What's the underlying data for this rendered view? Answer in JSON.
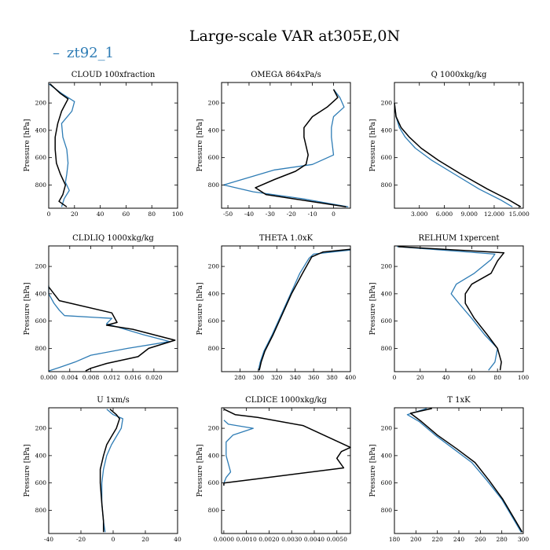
{
  "figure": {
    "title": "Large-scale VAR at305E,0N",
    "legend_label": "zt92_1",
    "colors": {
      "series_1": "#2e7cb5",
      "series_2": "#000000"
    }
  },
  "chart_data": [
    {
      "type": "line",
      "title": "CLOUD  100xfraction",
      "xlabel": "",
      "ylabel": "Pressure [hPa]",
      "xlim": [
        0,
        100
      ],
      "ylim": [
        970,
        50
      ],
      "xticks": [
        0,
        20,
        40,
        60,
        80,
        100
      ],
      "xtick_labels": [
        "0",
        "20",
        "40",
        "60",
        "80",
        "100"
      ],
      "yticks": [
        200,
        400,
        600,
        800
      ],
      "ytick_labels": [
        "200",
        "400",
        "600",
        "800"
      ],
      "series": [
        {
          "name": "zt92_1",
          "color": "#2e7cb5",
          "x": [
            0,
            10,
            20,
            18,
            10,
            11,
            14,
            15,
            14,
            13,
            16,
            12,
            10
          ],
          "y": [
            60,
            130,
            190,
            260,
            350,
            450,
            540,
            640,
            720,
            780,
            840,
            900,
            960
          ]
        },
        {
          "color": "#000000",
          "x": [
            1,
            9,
            15,
            10,
            7,
            5,
            5,
            6,
            9,
            13,
            11,
            8,
            14
          ],
          "y": [
            60,
            130,
            170,
            260,
            350,
            450,
            540,
            640,
            720,
            800,
            870,
            920,
            960
          ]
        }
      ]
    },
    {
      "type": "line",
      "title": "OMEGA  864xPa/s",
      "xlabel": "",
      "ylabel": "Pressure [hPa]",
      "xlim": [
        -53,
        8
      ],
      "ylim": [
        970,
        50
      ],
      "xticks": [
        -50,
        -40,
        -30,
        -20,
        -10,
        0
      ],
      "xtick_labels": [
        "-50",
        "-40",
        "-30",
        "-20",
        "-10",
        "0"
      ],
      "series": [
        {
          "name": "zt92_1",
          "color": "#2e7cb5",
          "x": [
            0,
            3,
            5,
            0,
            -1,
            -1,
            0,
            -10,
            -28,
            -52,
            -38,
            -15,
            7
          ],
          "y": [
            100,
            160,
            230,
            300,
            380,
            450,
            580,
            650,
            690,
            800,
            850,
            900,
            960
          ]
        },
        {
          "color": "#000000",
          "x": [
            0,
            2,
            -3,
            -10,
            -14,
            -14,
            -12,
            -13,
            -18,
            -28,
            -37,
            -32,
            6
          ],
          "y": [
            100,
            160,
            230,
            300,
            380,
            450,
            580,
            650,
            700,
            760,
            820,
            870,
            960
          ]
        }
      ]
    },
    {
      "type": "line",
      "title": "Q  1000xkg/kg",
      "xlabel": "",
      "ylabel": "Pressure [hPa]",
      "xlim": [
        0,
        15.5
      ],
      "ylim": [
        970,
        50
      ],
      "xticks": [
        3,
        6,
        9,
        12,
        15
      ],
      "xtick_labels": [
        "3.000",
        "6.000",
        "9.000",
        "12.000",
        "15.000"
      ],
      "series": [
        {
          "name": "zt92_1",
          "color": "#2e7cb5",
          "x": [
            0,
            0.2,
            0.6,
            1.3,
            2.5,
            4.5,
            7.2,
            10.2,
            12.8,
            14.2
          ],
          "y": [
            200,
            300,
            380,
            450,
            530,
            620,
            720,
            830,
            910,
            960
          ]
        },
        {
          "color": "#000000",
          "x": [
            0,
            0.2,
            0.8,
            1.8,
            3.2,
            5.3,
            8.0,
            11.2,
            13.8,
            15.2
          ],
          "y": [
            200,
            300,
            380,
            450,
            530,
            620,
            720,
            830,
            910,
            960
          ]
        }
      ]
    },
    {
      "type": "line",
      "title": "CLDLIQ  1000xkg/kg",
      "xlabel": "",
      "ylabel": "Pressure [hPa]",
      "xlim": [
        0,
        0.0245
      ],
      "ylim": [
        970,
        50
      ],
      "xticks": [
        0,
        0.004,
        0.008,
        0.012,
        0.016,
        0.02
      ],
      "xtick_labels": [
        "0.000",
        "0.004",
        "0.008",
        "0.012",
        "0.016",
        "0.020"
      ],
      "series": [
        {
          "name": "zt92_1",
          "color": "#2e7cb5",
          "x": [
            0,
            0,
            0.001,
            0.002,
            0.003,
            0.012,
            0.011,
            0.018,
            0.023,
            0.015,
            0.008,
            0.005,
            0.002,
            0
          ],
          "y": [
            340,
            400,
            470,
            520,
            560,
            580,
            620,
            700,
            750,
            800,
            850,
            900,
            940,
            965
          ]
        },
        {
          "color": "#000000",
          "x": [
            0,
            0.001,
            0.002,
            0.012,
            0.013,
            0.011,
            0.016,
            0.024,
            0.019,
            0.017,
            0.011,
            0.008,
            0.007
          ],
          "y": [
            350,
            400,
            450,
            540,
            610,
            630,
            660,
            740,
            800,
            860,
            910,
            945,
            965
          ]
        }
      ]
    },
    {
      "type": "line",
      "title": "THETA  1.0xK",
      "xlabel": "",
      "ylabel": "Pressure [hPa]",
      "xlim": [
        260,
        400
      ],
      "ylim": [
        970,
        50
      ],
      "xticks": [
        280,
        300,
        320,
        340,
        360,
        380,
        400
      ],
      "xtick_labels": [
        "280",
        "300",
        "320",
        "340",
        "360",
        "380",
        "400"
      ],
      "series": [
        {
          "name": "zt92_1",
          "color": "#2e7cb5",
          "x": [
            400,
            360,
            355,
            345,
            335,
            325,
            315,
            306,
            302,
            300
          ],
          "y": [
            80,
            110,
            140,
            250,
            400,
            550,
            700,
            820,
            900,
            960
          ]
        },
        {
          "color": "#000000",
          "x": [
            400,
            370,
            358,
            348,
            336,
            326,
            316,
            307,
            303,
            301
          ],
          "y": [
            75,
            95,
            130,
            250,
            400,
            550,
            700,
            820,
            900,
            960
          ]
        }
      ]
    },
    {
      "type": "line",
      "title": "RELHUM  1xpercent",
      "xlabel": "",
      "ylabel": "Pressure [hPa]",
      "xlim": [
        0,
        100
      ],
      "ylim": [
        970,
        50
      ],
      "xticks": [
        0,
        20,
        40,
        60,
        80,
        100
      ],
      "xtick_labels": [
        "0",
        "20",
        "40",
        "60",
        "80",
        "100"
      ],
      "series": [
        {
          "name": "zt92_1",
          "color": "#2e7cb5",
          "x": [
            2,
            78,
            75,
            62,
            48,
            44,
            50,
            60,
            70,
            80,
            78,
            73
          ],
          "y": [
            55,
            110,
            150,
            250,
            330,
            400,
            470,
            580,
            700,
            800,
            900,
            960
          ]
        },
        {
          "color": "#000000",
          "x": [
            3,
            85,
            80,
            75,
            60,
            55,
            55,
            62,
            72,
            80,
            83,
            82
          ],
          "y": [
            55,
            100,
            160,
            250,
            330,
            400,
            470,
            580,
            700,
            800,
            900,
            960
          ]
        }
      ]
    },
    {
      "type": "line",
      "title": "U  1xm/s",
      "xlabel": "",
      "ylabel": "Pressure [hPa]",
      "xlim": [
        -40,
        40
      ],
      "ylim": [
        970,
        50
      ],
      "xticks": [
        -40,
        -20,
        0,
        20,
        40
      ],
      "xtick_labels": [
        "-40",
        "-20",
        "0",
        "20",
        "40"
      ],
      "series": [
        {
          "name": "zt92_1",
          "color": "#2e7cb5",
          "x": [
            -4,
            0,
            6,
            5,
            2,
            -1,
            -4,
            -6,
            -7,
            -7,
            -6,
            -5
          ],
          "y": [
            60,
            100,
            130,
            200,
            260,
            320,
            400,
            500,
            600,
            750,
            880,
            960
          ]
        },
        {
          "color": "#000000",
          "x": [
            -2,
            2,
            4,
            2,
            -1,
            -4,
            -6,
            -8,
            -8,
            -7,
            -6,
            -6
          ],
          "y": [
            60,
            100,
            130,
            200,
            260,
            320,
            400,
            500,
            600,
            750,
            880,
            960
          ]
        }
      ]
    },
    {
      "type": "line",
      "title": "CLDICE  1000xkg/kg",
      "xlabel": "",
      "ylabel": "Pressure [hPa]",
      "xlim": [
        -0.0001,
        0.0056
      ],
      "ylim": [
        970,
        50
      ],
      "xticks": [
        0,
        0.001,
        0.002,
        0.003,
        0.004,
        0.005
      ],
      "xtick_labels": [
        "0.0000",
        "0.0010",
        "0.0020",
        "0.0030",
        "0.0040",
        "0.0050"
      ],
      "series": [
        {
          "name": "zt92_1",
          "color": "#2e7cb5",
          "x": [
            0,
            0.0002,
            0.0013,
            0.0004,
            0.0001,
            0.0001,
            0.0003,
            0.0001,
            0
          ],
          "y": [
            140,
            170,
            200,
            250,
            300,
            400,
            520,
            560,
            600
          ]
        },
        {
          "color": "#000000",
          "x": [
            0,
            0.0005,
            0.0015,
            0.0035,
            0.0056,
            0.0052,
            0.005,
            0.0053,
            0.0015,
            0,
            0
          ],
          "y": [
            60,
            100,
            120,
            180,
            340,
            370,
            420,
            490,
            570,
            600,
            620
          ]
        }
      ]
    },
    {
      "type": "line",
      "title": "T  1xK",
      "xlabel": "",
      "ylabel": "Pressure [hPa]",
      "xlim": [
        180,
        300
      ],
      "ylim": [
        970,
        50
      ],
      "xticks": [
        180,
        200,
        220,
        240,
        260,
        280,
        300
      ],
      "xtick_labels": [
        "180",
        "200",
        "220",
        "240",
        "260",
        "280",
        "300"
      ],
      "series": [
        {
          "name": "zt92_1",
          "color": "#2e7cb5",
          "x": [
            210,
            192,
            203,
            218,
            235,
            252,
            266,
            280,
            292,
            298
          ],
          "y": [
            55,
            100,
            150,
            250,
            350,
            450,
            580,
            720,
            880,
            960
          ]
        },
        {
          "color": "#000000",
          "x": [
            215,
            195,
            205,
            220,
            238,
            255,
            268,
            281,
            293,
            299
          ],
          "y": [
            55,
            90,
            150,
            250,
            350,
            450,
            580,
            720,
            880,
            960
          ]
        }
      ]
    }
  ]
}
